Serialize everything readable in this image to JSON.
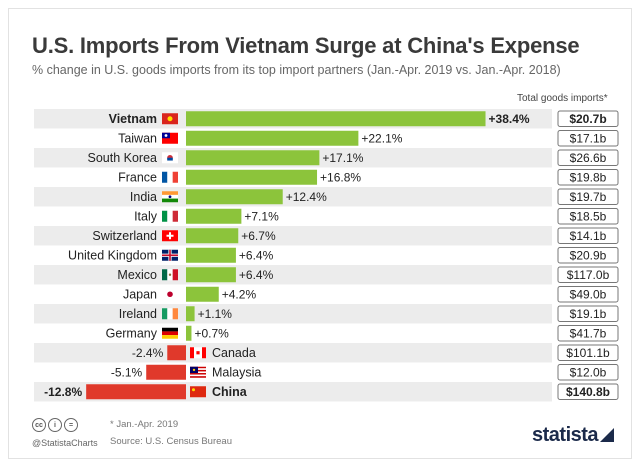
{
  "title": "U.S. Imports From Vietnam Surge at China's Expense",
  "subtitle": "% change in U.S. goods imports from its top import partners (Jan.-Apr. 2019 vs. Jan.-Apr. 2018)",
  "column_header": "Total goods imports*",
  "footnote": "* Jan.-Apr. 2019",
  "source": "Source: U.S. Census Bureau",
  "handle": "@StatistaCharts",
  "brand": "statista",
  "colors": {
    "positive": "#8cc43b",
    "negative": "#e0392b",
    "stripe": "#ececec"
  },
  "chart_data": {
    "type": "bar",
    "orientation": "horizontal",
    "title": "U.S. Imports From Vietnam Surge at China's Expense",
    "categories": [
      "Vietnam",
      "Taiwan",
      "South Korea",
      "France",
      "India",
      "Italy",
      "Switzerland",
      "United Kingdom",
      "Mexico",
      "Japan",
      "Ireland",
      "Germany",
      "Canada",
      "Malaysia",
      "China"
    ],
    "values": [
      38.4,
      22.1,
      17.1,
      16.8,
      12.4,
      7.1,
      6.7,
      6.4,
      6.4,
      4.2,
      1.1,
      0.7,
      -2.4,
      -5.1,
      -12.8
    ],
    "value_labels": [
      "+38.4%",
      "+22.1%",
      "+17.1%",
      "+16.8%",
      "+12.4%",
      "+7.1%",
      "+6.7%",
      "+6.4%",
      "+6.4%",
      "+4.2%",
      "+1.1%",
      "+0.7%",
      "-2.4%",
      "-5.1%",
      "-12.8%"
    ],
    "totals": [
      "$20.7b",
      "$17.1b",
      "$26.6b",
      "$19.8b",
      "$19.7b",
      "$18.5b",
      "$14.1b",
      "$20.9b",
      "$117.0b",
      "$49.0b",
      "$19.1b",
      "$41.7b",
      "$101.1b",
      "$12.0b",
      "$140.8b"
    ],
    "highlighted": [
      "Vietnam",
      "China"
    ],
    "flags": [
      "vn-flag",
      "tw-flag",
      "kr-flag",
      "fr-flag",
      "in-flag",
      "it-flag",
      "ch-flag",
      "gb-flag",
      "mx-flag",
      "jp-flag",
      "ie-flag",
      "de-flag",
      "ca-flag",
      "my-flag",
      "cn-flag"
    ]
  }
}
